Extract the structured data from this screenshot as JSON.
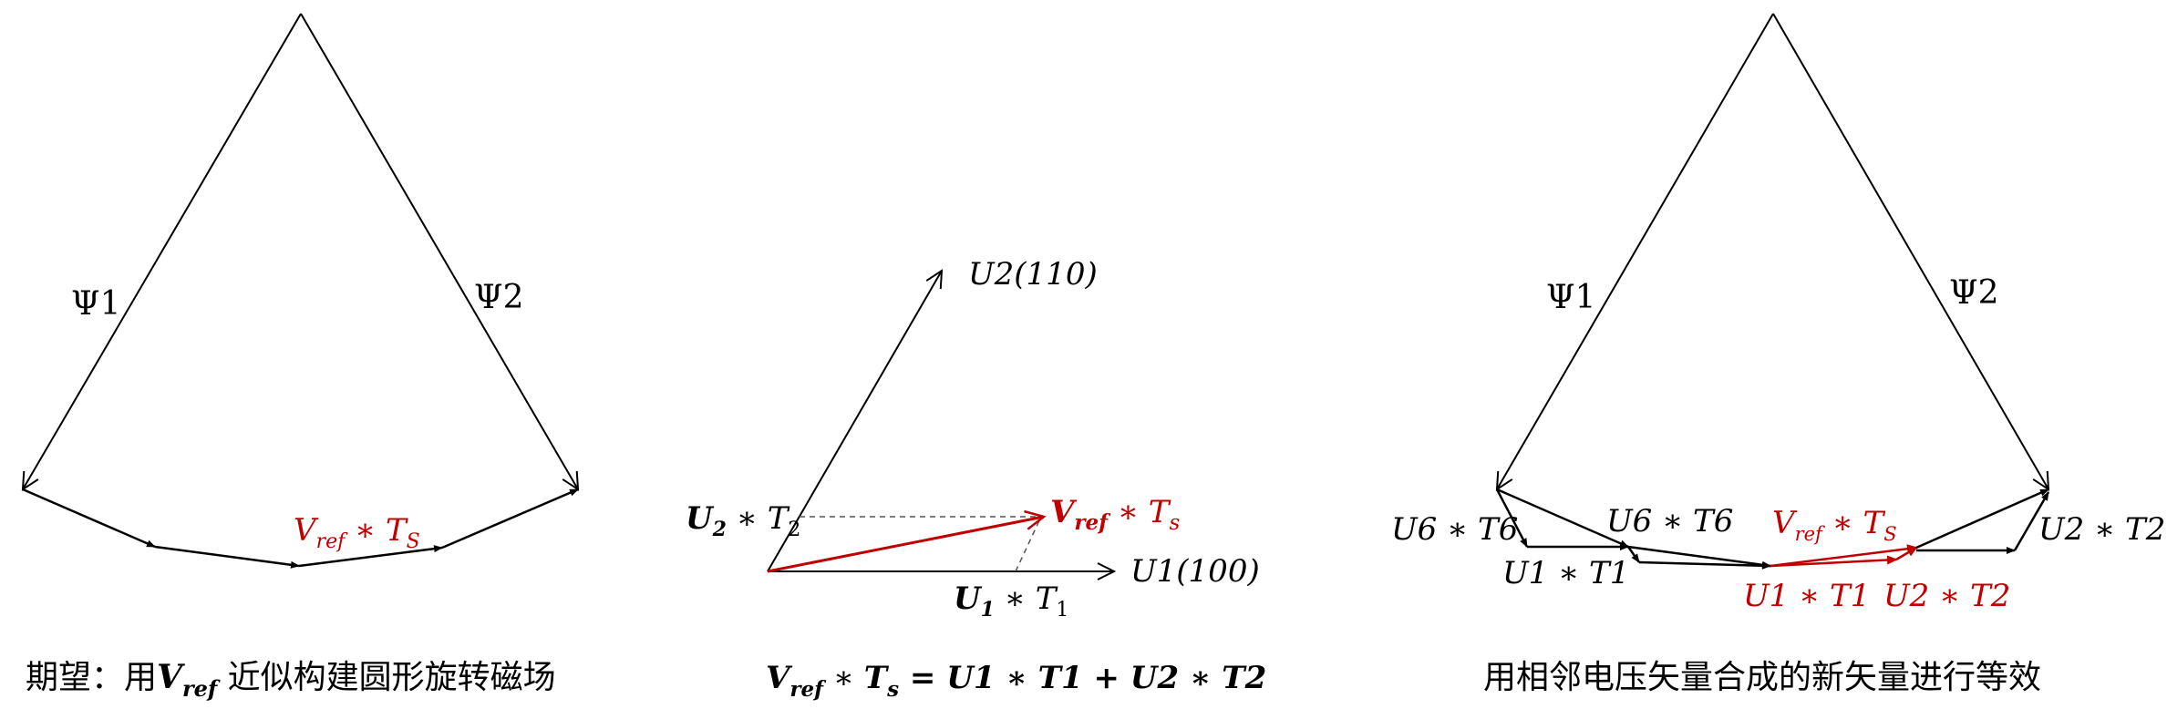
{
  "colors": {
    "black": "#000000",
    "red": "#c00000"
  },
  "panel1": {
    "psi1": "Ψ1",
    "psi2": "Ψ2",
    "vref_ts": {
      "v": "V",
      "sub": "ref",
      "star": " ∗ ",
      "t": "T",
      "tsub": "S"
    },
    "caption": {
      "prefix": "期望：用",
      "v": "V",
      "sub": "ref",
      "suffix": " 近似构建圆形旋转磁场"
    }
  },
  "panel2": {
    "u2_label": "U2(110)",
    "u1_label": "U1(100)",
    "u2t2": {
      "u": "U",
      "usub": "2",
      "star": " ∗ ",
      "t": "T",
      "tsub": "2"
    },
    "u1t1": {
      "u": "U",
      "usub": "1",
      "star": " ∗ ",
      "t": "T",
      "tsub": "1"
    },
    "vref_ts": {
      "v": "V",
      "sub": "ref",
      "star": " ∗ ",
      "t": "T",
      "tsub": "s"
    },
    "equation": {
      "v": "V",
      "sub": "ref",
      "a": " ∗ ",
      "t": "T",
      "tsub": "s",
      "rest": " = U1 ∗ T1 + U2 ∗ T2"
    }
  },
  "panel3": {
    "psi1": "Ψ1",
    "psi2": "Ψ2",
    "u6t6_left": "U6 ∗ T6",
    "u1t1_left": "U1 ∗ T1",
    "u6t6_mid": "U6 ∗ T6",
    "vref_ts": {
      "v": "V",
      "sub": "ref",
      "star": " ∗ ",
      "t": "T",
      "tsub": "S"
    },
    "u1t1_red": "U1 ∗ T1",
    "u2t2_red": "U2 ∗ T2",
    "u2t2_right": "U2 ∗ T2",
    "caption": "用相邻电压矢量合成的新矢量进行等效"
  }
}
